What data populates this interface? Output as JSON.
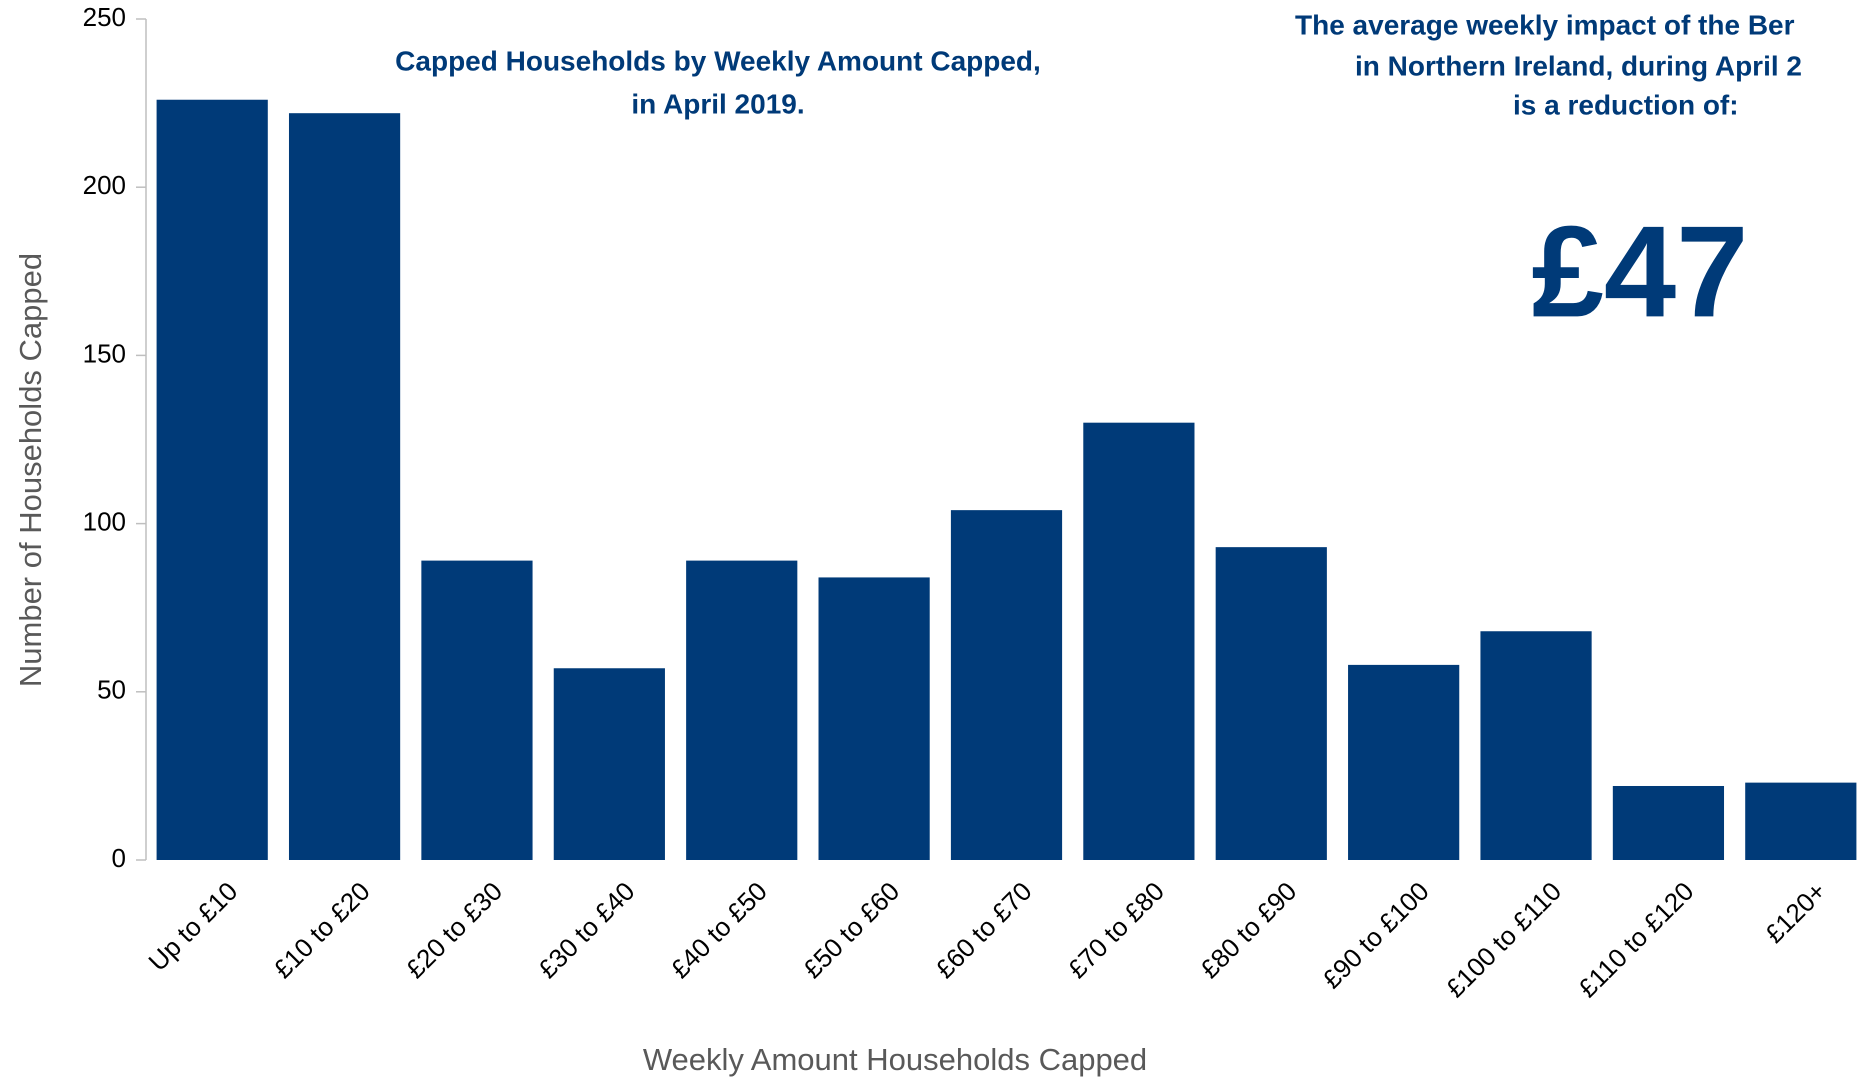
{
  "chart_data": {
    "type": "bar",
    "title": [
      "Capped Households by Weekly Amount Capped,",
      "in April 2019."
    ],
    "annotation": [
      "The average weekly impact of the Ber",
      "in Northern Ireland, during April 2",
      "is a reduction of:"
    ],
    "highlight": "£47",
    "x_label": "Weekly Amount Households Capped",
    "y_label": "Number of Households Capped",
    "categories": [
      "Up to £10",
      "£10 to £20",
      "£20 to £30",
      "£30 to £40",
      "£40 to £50",
      "£50 to £60",
      "£60 to £70",
      "£70 to £80",
      "£80 to £90",
      "£90 to £100",
      "£100 to £110",
      "£110 to £120",
      "£120+"
    ],
    "values": [
      226,
      222,
      89,
      57,
      89,
      84,
      104,
      130,
      93,
      58,
      68,
      22,
      23
    ],
    "color": "#003a78",
    "ylim": [
      0,
      250
    ],
    "yticks": [
      0,
      50,
      100,
      150,
      200,
      250
    ],
    "grid": false
  }
}
